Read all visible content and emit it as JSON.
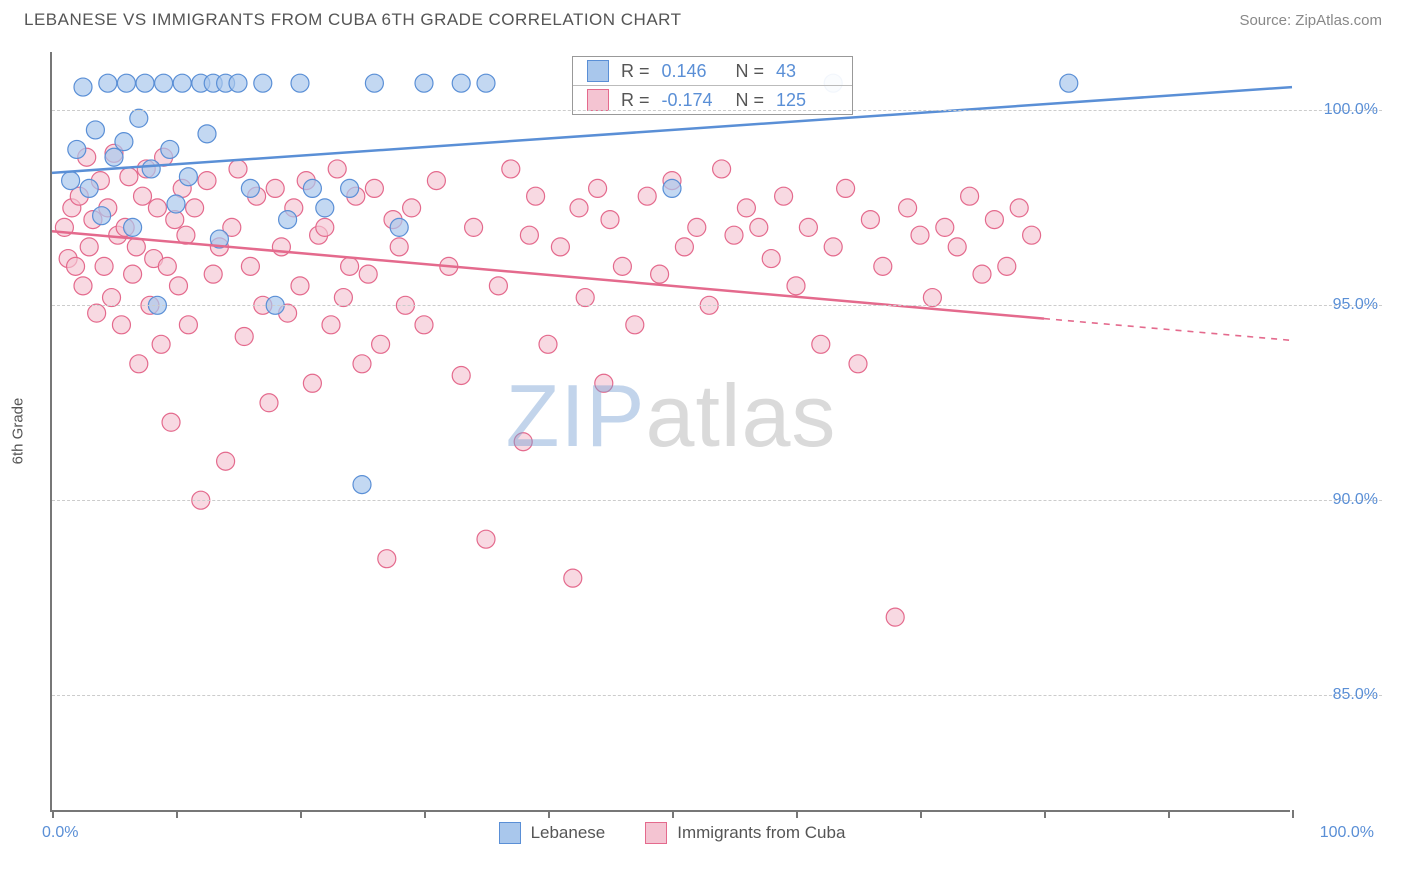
{
  "header": {
    "title": "LEBANESE VS IMMIGRANTS FROM CUBA 6TH GRADE CORRELATION CHART",
    "source": "Source: ZipAtlas.com"
  },
  "axes": {
    "y_title": "6th Grade",
    "x_min_label": "0.0%",
    "x_max_label": "100.0%",
    "y_ticks": [
      {
        "v": 85.0,
        "label": "85.0%"
      },
      {
        "v": 90.0,
        "label": "90.0%"
      },
      {
        "v": 95.0,
        "label": "95.0%"
      },
      {
        "v": 100.0,
        "label": "100.0%"
      }
    ],
    "y_domain": [
      82,
      101.5
    ],
    "x_domain": [
      0,
      100
    ],
    "x_tick_positions": [
      0,
      10,
      20,
      30,
      40,
      50,
      60,
      70,
      80,
      90,
      100
    ]
  },
  "series": {
    "a": {
      "name": "Lebanese",
      "color_fill": "#a9c7ec",
      "color_stroke": "#5a8fd6",
      "marker_r": 9,
      "marker_opacity": 0.7,
      "reg_line": {
        "x1": 0,
        "y1": 98.4,
        "x2": 100,
        "y2": 100.6,
        "dash_from_x": 100
      },
      "stats": {
        "R": "0.146",
        "N": "43"
      },
      "points": [
        [
          1.5,
          98.2
        ],
        [
          2,
          99.0
        ],
        [
          2.5,
          100.6
        ],
        [
          3,
          98.0
        ],
        [
          3.5,
          99.5
        ],
        [
          4,
          97.3
        ],
        [
          4.5,
          100.7
        ],
        [
          5,
          98.8
        ],
        [
          5.8,
          99.2
        ],
        [
          6,
          100.7
        ],
        [
          6.5,
          97.0
        ],
        [
          7,
          99.8
        ],
        [
          7.5,
          100.7
        ],
        [
          8,
          98.5
        ],
        [
          8.5,
          95.0
        ],
        [
          9,
          100.7
        ],
        [
          9.5,
          99.0
        ],
        [
          10,
          97.6
        ],
        [
          10.5,
          100.7
        ],
        [
          11,
          98.3
        ],
        [
          12,
          100.7
        ],
        [
          12.5,
          99.4
        ],
        [
          13,
          100.7
        ],
        [
          13.5,
          96.7
        ],
        [
          14,
          100.7
        ],
        [
          15,
          100.7
        ],
        [
          16,
          98.0
        ],
        [
          17,
          100.7
        ],
        [
          18,
          95.0
        ],
        [
          19,
          97.2
        ],
        [
          20,
          100.7
        ],
        [
          21,
          98.0
        ],
        [
          22,
          97.5
        ],
        [
          24,
          98.0
        ],
        [
          25,
          90.4
        ],
        [
          26,
          100.7
        ],
        [
          28,
          97.0
        ],
        [
          30,
          100.7
        ],
        [
          33,
          100.7
        ],
        [
          35,
          100.7
        ],
        [
          50,
          98.0
        ],
        [
          63,
          100.7
        ],
        [
          82,
          100.7
        ]
      ]
    },
    "b": {
      "name": "Immigrants from Cuba",
      "color_fill": "#f4c4d2",
      "color_stroke": "#e46a8d",
      "marker_r": 9,
      "marker_opacity": 0.65,
      "reg_line": {
        "x1": 0,
        "y1": 96.9,
        "x2": 100,
        "y2": 94.1,
        "dash_from_x": 80
      },
      "stats": {
        "R": "-0.174",
        "N": "125"
      },
      "points": [
        [
          1,
          97.0
        ],
        [
          1.3,
          96.2
        ],
        [
          1.6,
          97.5
        ],
        [
          1.9,
          96.0
        ],
        [
          2.2,
          97.8
        ],
        [
          2.5,
          95.5
        ],
        [
          2.8,
          98.8
        ],
        [
          3,
          96.5
        ],
        [
          3.3,
          97.2
        ],
        [
          3.6,
          94.8
        ],
        [
          3.9,
          98.2
        ],
        [
          4.2,
          96.0
        ],
        [
          4.5,
          97.5
        ],
        [
          4.8,
          95.2
        ],
        [
          5,
          98.9
        ],
        [
          5.3,
          96.8
        ],
        [
          5.6,
          94.5
        ],
        [
          5.9,
          97.0
        ],
        [
          6.2,
          98.3
        ],
        [
          6.5,
          95.8
        ],
        [
          6.8,
          96.5
        ],
        [
          7,
          93.5
        ],
        [
          7.3,
          97.8
        ],
        [
          7.6,
          98.5
        ],
        [
          7.9,
          95.0
        ],
        [
          8.2,
          96.2
        ],
        [
          8.5,
          97.5
        ],
        [
          8.8,
          94.0
        ],
        [
          9,
          98.8
        ],
        [
          9.3,
          96.0
        ],
        [
          9.6,
          92.0
        ],
        [
          9.9,
          97.2
        ],
        [
          10.2,
          95.5
        ],
        [
          10.5,
          98.0
        ],
        [
          10.8,
          96.8
        ],
        [
          11,
          94.5
        ],
        [
          11.5,
          97.5
        ],
        [
          12,
          90.0
        ],
        [
          12.5,
          98.2
        ],
        [
          13,
          95.8
        ],
        [
          13.5,
          96.5
        ],
        [
          14,
          91.0
        ],
        [
          14.5,
          97.0
        ],
        [
          15,
          98.5
        ],
        [
          15.5,
          94.2
        ],
        [
          16,
          96.0
        ],
        [
          16.5,
          97.8
        ],
        [
          17,
          95.0
        ],
        [
          17.5,
          92.5
        ],
        [
          18,
          98.0
        ],
        [
          18.5,
          96.5
        ],
        [
          19,
          94.8
        ],
        [
          19.5,
          97.5
        ],
        [
          20,
          95.5
        ],
        [
          20.5,
          98.2
        ],
        [
          21,
          93.0
        ],
        [
          21.5,
          96.8
        ],
        [
          22,
          97.0
        ],
        [
          22.5,
          94.5
        ],
        [
          23,
          98.5
        ],
        [
          23.5,
          95.2
        ],
        [
          24,
          96.0
        ],
        [
          24.5,
          97.8
        ],
        [
          25,
          93.5
        ],
        [
          25.5,
          95.8
        ],
        [
          26,
          98.0
        ],
        [
          26.5,
          94.0
        ],
        [
          27,
          88.5
        ],
        [
          27.5,
          97.2
        ],
        [
          28,
          96.5
        ],
        [
          28.5,
          95.0
        ],
        [
          29,
          97.5
        ],
        [
          30,
          94.5
        ],
        [
          31,
          98.2
        ],
        [
          32,
          96.0
        ],
        [
          33,
          93.2
        ],
        [
          34,
          97.0
        ],
        [
          35,
          89.0
        ],
        [
          36,
          95.5
        ],
        [
          37,
          98.5
        ],
        [
          38,
          91.5
        ],
        [
          38.5,
          96.8
        ],
        [
          39,
          97.8
        ],
        [
          40,
          94.0
        ],
        [
          41,
          96.5
        ],
        [
          42,
          88.0
        ],
        [
          42.5,
          97.5
        ],
        [
          43,
          95.2
        ],
        [
          44,
          98.0
        ],
        [
          44.5,
          93.0
        ],
        [
          45,
          97.2
        ],
        [
          46,
          96.0
        ],
        [
          47,
          94.5
        ],
        [
          48,
          97.8
        ],
        [
          49,
          95.8
        ],
        [
          50,
          98.2
        ],
        [
          51,
          96.5
        ],
        [
          52,
          97.0
        ],
        [
          53,
          95.0
        ],
        [
          54,
          98.5
        ],
        [
          55,
          96.8
        ],
        [
          56,
          97.5
        ],
        [
          57,
          97.0
        ],
        [
          58,
          96.2
        ],
        [
          59,
          97.8
        ],
        [
          60,
          95.5
        ],
        [
          61,
          97.0
        ],
        [
          62,
          94.0
        ],
        [
          63,
          96.5
        ],
        [
          64,
          98.0
        ],
        [
          65,
          93.5
        ],
        [
          66,
          97.2
        ],
        [
          67,
          96.0
        ],
        [
          68,
          87.0
        ],
        [
          69,
          97.5
        ],
        [
          70,
          96.8
        ],
        [
          71,
          95.2
        ],
        [
          72,
          97.0
        ],
        [
          73,
          96.5
        ],
        [
          74,
          97.8
        ],
        [
          75,
          95.8
        ],
        [
          76,
          97.2
        ],
        [
          77,
          96.0
        ],
        [
          78,
          97.5
        ],
        [
          79,
          96.8
        ]
      ]
    }
  },
  "watermark": {
    "part1": "ZIP",
    "part2": "atlas"
  },
  "legend_stats_labels": {
    "R": "R =",
    "N": "N ="
  }
}
